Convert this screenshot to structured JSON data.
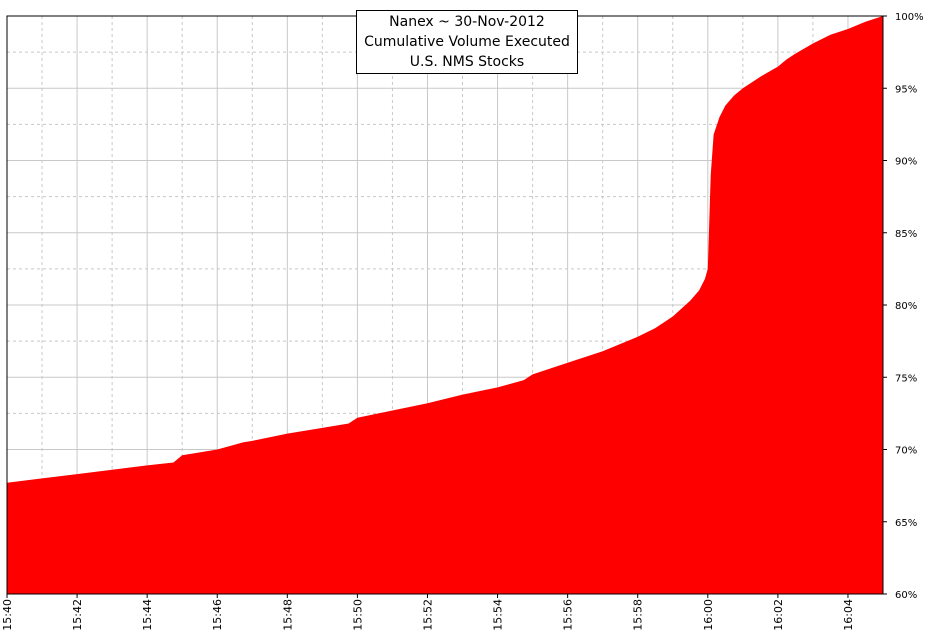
{
  "chart_data": {
    "type": "area",
    "title_lines": [
      "Nanex ~ 30-Nov-2012",
      "Cumulative Volume Executed",
      "U.S. NMS Stocks"
    ],
    "x_tick_labels": [
      "15:40",
      "15:42",
      "15:44",
      "15:46",
      "15:48",
      "15:50",
      "15:52",
      "15:54",
      "15:56",
      "15:58",
      "16:00",
      "16:02",
      "16:04"
    ],
    "y_tick_labels": [
      "60%",
      "65%",
      "70%",
      "75%",
      "80%",
      "85%",
      "90%",
      "95%",
      "100%"
    ],
    "xlim_minutes_after_1540": [
      0,
      25
    ],
    "ylim": [
      60,
      100
    ],
    "grid": true,
    "fill_color": "#ff0000",
    "series": [
      {
        "x": [
          "15:40:00",
          "15:41:00",
          "15:42:00",
          "15:43:00",
          "15:44:00",
          "15:44:45",
          "15:45:00",
          "15:46:00",
          "15:46:45",
          "15:47:00",
          "15:48:00",
          "15:49:00",
          "15:49:45",
          "15:50:00",
          "15:51:00",
          "15:52:00",
          "15:53:00",
          "15:54:00",
          "15:54:45",
          "15:55:00",
          "15:56:00",
          "15:57:00",
          "15:58:00",
          "15:58:30",
          "15:59:00",
          "15:59:30",
          "15:59:45",
          "15:59:55",
          "16:00:00",
          "16:00:05",
          "16:00:10",
          "16:00:20",
          "16:00:30",
          "16:00:45",
          "16:01:00",
          "16:01:30",
          "16:02:00",
          "16:02:15",
          "16:02:30",
          "16:03:00",
          "16:03:30",
          "16:04:00",
          "16:04:30",
          "16:05:00"
        ],
        "y": [
          67.7,
          68.0,
          68.3,
          68.6,
          68.9,
          69.1,
          69.6,
          70.0,
          70.5,
          70.6,
          71.1,
          71.5,
          71.8,
          72.2,
          72.7,
          73.2,
          73.8,
          74.3,
          74.8,
          75.2,
          76.0,
          76.8,
          77.8,
          78.4,
          79.2,
          80.3,
          81.0,
          81.8,
          82.5,
          89.0,
          91.8,
          93.0,
          93.8,
          94.5,
          95.0,
          95.8,
          96.5,
          97.0,
          97.4,
          98.1,
          98.7,
          99.1,
          99.6,
          100.0
        ]
      }
    ]
  }
}
